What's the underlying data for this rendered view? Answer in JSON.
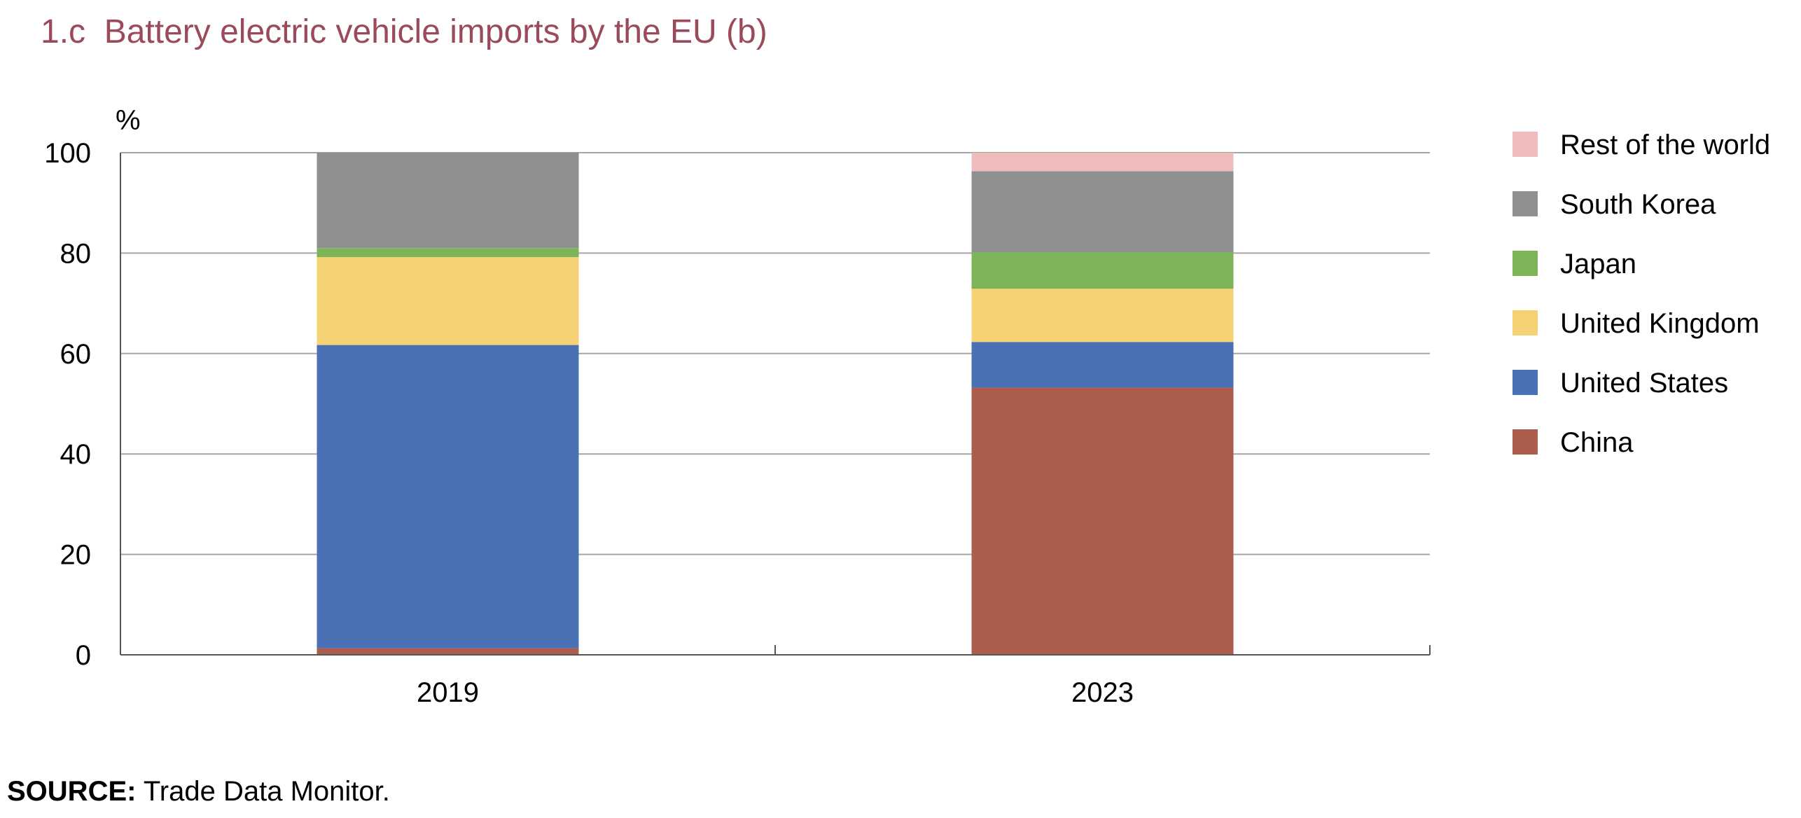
{
  "chart_data": {
    "type": "bar",
    "stacked": true,
    "title": "1.c  Battery electric vehicle imports by the EU (b)",
    "ylabel": "%",
    "xlabel": "",
    "ylim": [
      0,
      100
    ],
    "y_ticks": [
      "0",
      "20",
      "40",
      "60",
      "80",
      "100"
    ],
    "y_tick_values": [
      0,
      20,
      40,
      60,
      80,
      100
    ],
    "categories": [
      "2019",
      "2023"
    ],
    "grid": true,
    "legend_position": "right",
    "series": [
      {
        "name": "China",
        "color": "#ad5d4b",
        "values": [
          1.3,
          53.2
        ]
      },
      {
        "name": "United States",
        "color": "#4a71b4",
        "values": [
          60.4,
          9.1
        ]
      },
      {
        "name": "United Kingdom",
        "color": "#f5d273",
        "values": [
          17.5,
          10.6
        ]
      },
      {
        "name": "Japan",
        "color": "#7db45a",
        "values": [
          1.8,
          7.3
        ]
      },
      {
        "name": "South Korea",
        "color": "#8f8f8f",
        "values": [
          19.0,
          16.1
        ]
      },
      {
        "name": "Rest of the world",
        "color": "#efbcbc",
        "values": [
          0.0,
          3.7
        ]
      }
    ]
  },
  "source": {
    "label": "SOURCE:",
    "text": " Trade Data Monitor."
  },
  "colors": {
    "title": "#9a4a5a",
    "grid": "#a6a6a6",
    "axis": "#555555"
  }
}
